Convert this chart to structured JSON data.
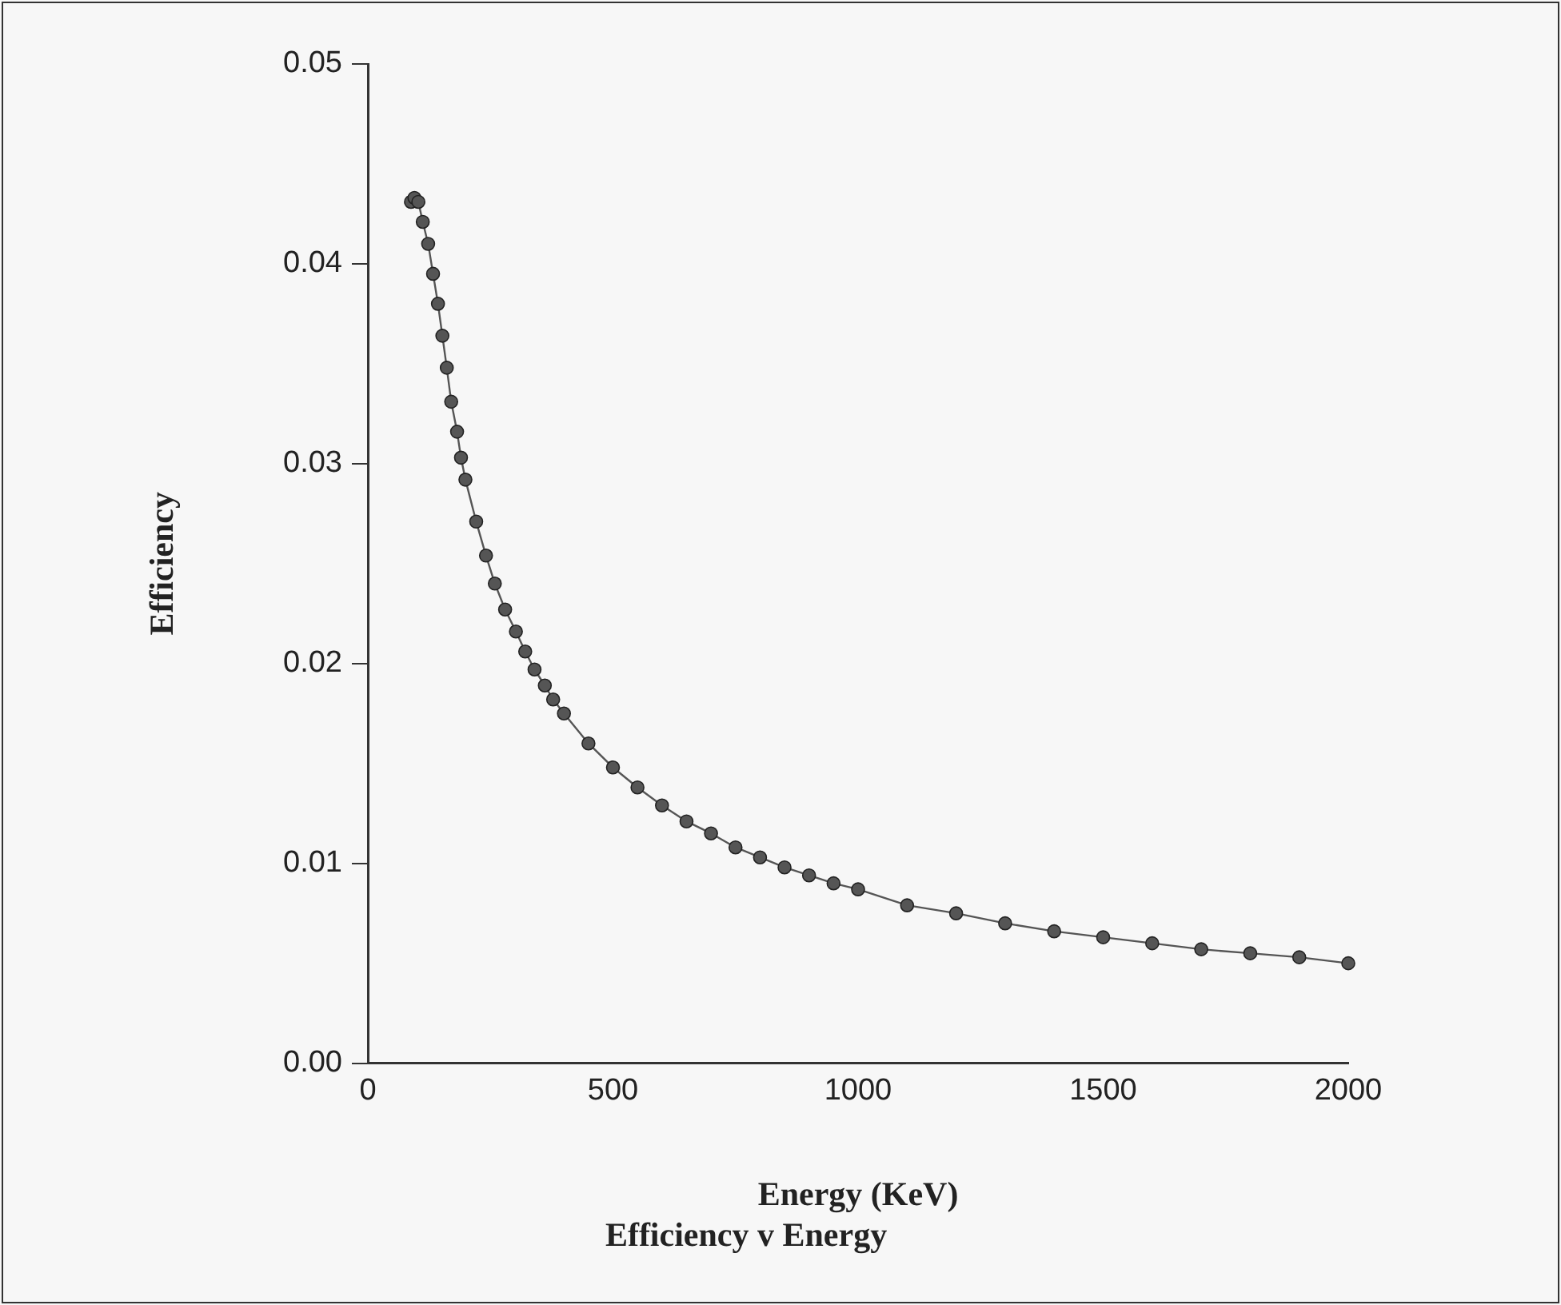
{
  "chart_data": {
    "type": "line",
    "title": "Efficiency v Energy",
    "xlabel": "Energy (KeV)",
    "ylabel": "Efficiency",
    "xlim": [
      0,
      2000
    ],
    "xticks": [
      0,
      500,
      1000,
      1500,
      2000
    ],
    "ylim": [
      0,
      0.05
    ],
    "yticks": [
      {
        "value": 0,
        "label": "0.00"
      },
      {
        "value": 0.01,
        "label": "0.01"
      },
      {
        "value": 0.02,
        "label": "0.02"
      },
      {
        "value": 0.03,
        "label": "0.03"
      },
      {
        "value": 0.04,
        "label": "0.04"
      },
      {
        "value": 0.05,
        "label": "0.05"
      }
    ],
    "grid": false,
    "legend": false,
    "marker": "circle",
    "line_style": "solid",
    "series": [
      {
        "color": "#555555",
        "x": [
          88,
          95,
          103,
          112,
          123,
          133,
          143,
          152,
          161,
          170,
          182,
          190,
          199,
          221,
          241,
          259,
          280,
          302,
          321,
          340,
          361,
          378,
          400,
          450,
          500,
          550,
          600,
          650,
          700,
          750,
          800,
          850,
          900,
          950,
          1000,
          1100,
          1200,
          1300,
          1400,
          1500,
          1600,
          1700,
          1800,
          1900,
          2000
        ],
        "values": [
          0.0431,
          0.0433,
          0.0431,
          0.0421,
          0.041,
          0.0395,
          0.038,
          0.0364,
          0.0348,
          0.0331,
          0.0316,
          0.0303,
          0.0292,
          0.0271,
          0.0254,
          0.024,
          0.0227,
          0.0216,
          0.0206,
          0.0197,
          0.0189,
          0.0182,
          0.0175,
          0.016,
          0.0148,
          0.0138,
          0.0129,
          0.0121,
          0.0115,
          0.0108,
          0.0103,
          0.0098,
          0.0094,
          0.009,
          0.0087,
          0.0079,
          0.0075,
          0.007,
          0.0066,
          0.0063,
          0.006,
          0.0057,
          0.0055,
          0.0053,
          0.005
        ]
      }
    ]
  }
}
